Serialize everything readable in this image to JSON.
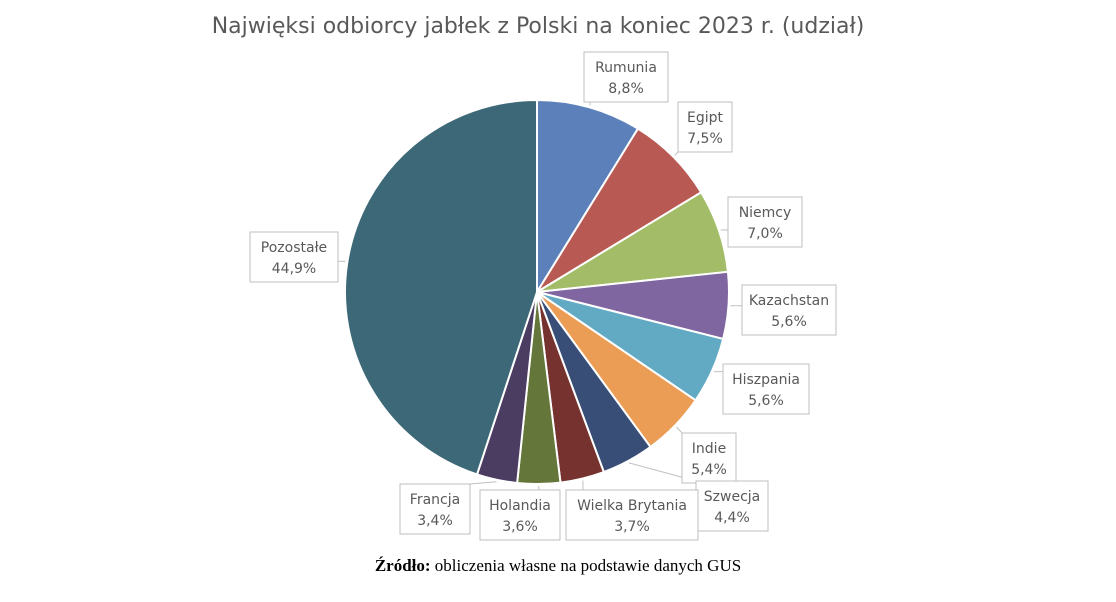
{
  "chart_data": {
    "type": "pie",
    "title": "Najwięksi odbiorcy jabłek z Polski na koniec 2023 r. (udział)",
    "start_angle_deg": 0,
    "direction": "clockwise",
    "slices": [
      {
        "label": "Rumunia",
        "value": 8.8,
        "display": "8,8%",
        "color": "#5b80ba"
      },
      {
        "label": "Egipt",
        "value": 7.5,
        "display": "7,5%",
        "color": "#b85a53"
      },
      {
        "label": "Niemcy",
        "value": 7.0,
        "display": "7,0%",
        "color": "#a2bc67"
      },
      {
        "label": "Kazachstan",
        "value": 5.6,
        "display": "5,6%",
        "color": "#7f66a0"
      },
      {
        "label": "Hiszpania",
        "value": 5.6,
        "display": "5,6%",
        "color": "#62a9c4"
      },
      {
        "label": "Indie",
        "value": 5.4,
        "display": "5,4%",
        "color": "#eb9c55"
      },
      {
        "label": "Szwecja",
        "value": 4.4,
        "display": "4,4%",
        "color": "#384e76"
      },
      {
        "label": "Wielka Brytania",
        "value": 3.7,
        "display": "3,7%",
        "color": "#76322f"
      },
      {
        "label": "Holandia",
        "value": 3.6,
        "display": "3,6%",
        "color": "#647639"
      },
      {
        "label": "Francja",
        "value": 3.4,
        "display": "3,4%",
        "color": "#4b3d62"
      },
      {
        "label": "Pozostałe",
        "value": 44.9,
        "display": "44,9%",
        "color": "#3c6878"
      }
    ]
  },
  "source": {
    "bold": "Źródło:",
    "text": " obliczenia własne na podstawie danych GUS"
  }
}
